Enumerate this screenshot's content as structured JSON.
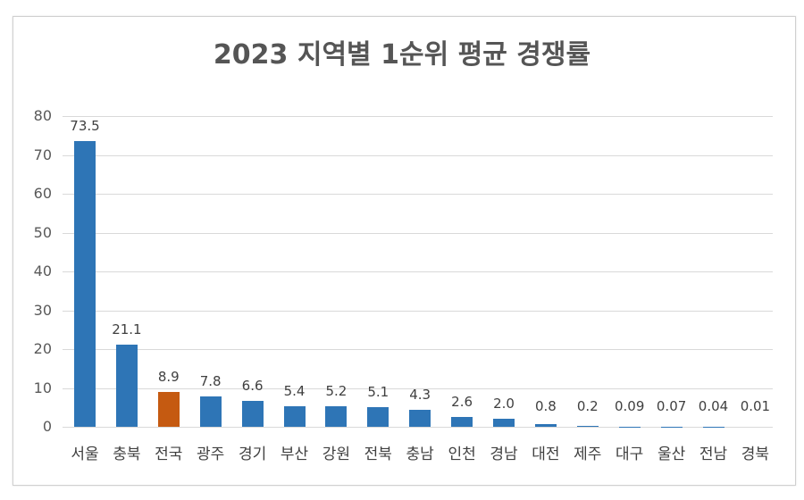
{
  "chart_data": {
    "type": "bar",
    "title": "2023 지역별 1순위 평균 경쟁률",
    "xlabel": "",
    "ylabel": "",
    "ylim": [
      0,
      80
    ],
    "yticks": [
      0,
      10,
      20,
      30,
      40,
      50,
      60,
      70,
      80
    ],
    "grid": true,
    "legend": null,
    "categories": [
      "서울",
      "충북",
      "전국",
      "광주",
      "경기",
      "부산",
      "강원",
      "전북",
      "충남",
      "인천",
      "경남",
      "대전",
      "제주",
      "대구",
      "울산",
      "전남",
      "경북"
    ],
    "values": [
      73.5,
      21.1,
      8.9,
      7.8,
      6.6,
      5.4,
      5.2,
      5.1,
      4.3,
      2.6,
      2.0,
      0.8,
      0.2,
      0.09,
      0.07,
      0.04,
      0.01
    ],
    "value_labels": [
      "73.5",
      "21.1",
      "8.9",
      "7.8",
      "6.6",
      "5.4",
      "5.2",
      "5.1",
      "4.3",
      "2.6",
      "2.0",
      "0.8",
      "0.2",
      "0.09",
      "0.07",
      "0.04",
      "0.01"
    ],
    "colors": {
      "default": "#2e75b6",
      "highlight": "#c55a11"
    },
    "highlight_category": "전국"
  }
}
